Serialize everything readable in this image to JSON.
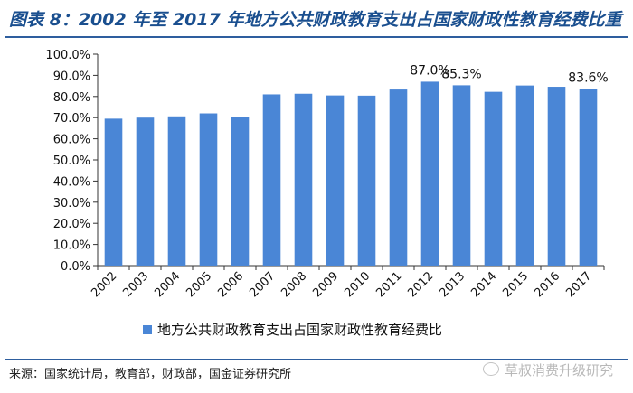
{
  "header": {
    "title": "图表 8：2002 年至 2017 年地方公共财政教育支出占国家财政性教育经费比重"
  },
  "footer": {
    "source": "来源：国家统计局，教育部，财政部，国金证券研究所",
    "watermark": "草叔消费升级研究",
    "watermark_icon": "wechat-icon"
  },
  "chart_data": {
    "type": "bar",
    "categories": [
      "2002",
      "2003",
      "2004",
      "2005",
      "2006",
      "2007",
      "2008",
      "2009",
      "2010",
      "2011",
      "2012",
      "2013",
      "2014",
      "2015",
      "2016",
      "2017"
    ],
    "series": [
      {
        "name": "地方公共财政教育支出占国家财政性教育经费比",
        "values": [
          69.5,
          70.0,
          70.6,
          72.0,
          70.5,
          81.0,
          81.3,
          80.5,
          80.4,
          83.3,
          87.0,
          85.3,
          82.2,
          85.2,
          84.6,
          83.6
        ],
        "color": "#4a86d6"
      }
    ],
    "data_labels": [
      {
        "category": "2012",
        "text": "87.0%"
      },
      {
        "category": "2013",
        "text": "85.3%"
      },
      {
        "category": "2017",
        "text": "83.6%"
      }
    ],
    "y_ticks": [
      "0.0%",
      "10.0%",
      "20.0%",
      "30.0%",
      "40.0%",
      "50.0%",
      "60.0%",
      "70.0%",
      "80.0%",
      "90.0%",
      "100.0%"
    ],
    "ylim": [
      0,
      100
    ],
    "xlabel": "",
    "ylabel": "",
    "grid": false,
    "legend": "bottom"
  }
}
